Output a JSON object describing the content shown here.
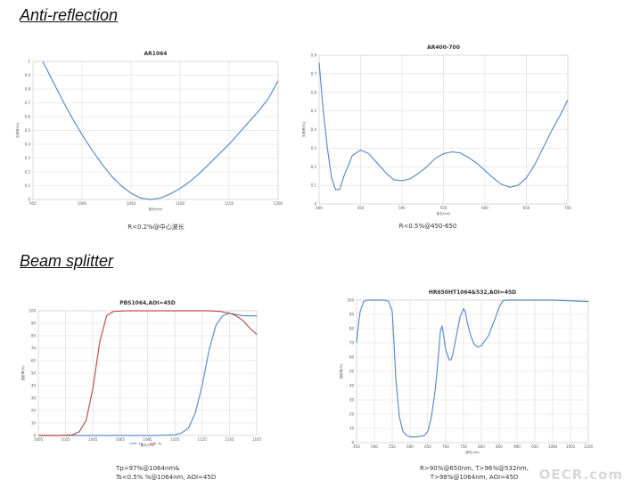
{
  "sections": {
    "anti_reflection": "Anti-reflection",
    "beam_splitter": "Beam splitter"
  },
  "captions": {
    "ar1064": "R<0.2%@中心波长",
    "ar400": "R<0.5%@450-650",
    "pbs_line1": "Tp>97%@1064nm&",
    "pbs_line2": "Ts<0.5% %@1064nm, AOI=45D",
    "hr_line1": "R>90%@650nm, T>96%@532nm,",
    "hr_line2": "T>98%@1064nm, AOI=45D"
  },
  "watermark": "OECR.com",
  "colors": {
    "blue": "#5b8fc9",
    "red": "#c0504d",
    "grid": "#d9d9d9"
  },
  "chart_data": [
    {
      "type": "line",
      "title": "AR1064",
      "xlabel": "波长(nm)",
      "ylabel": "反射率(%)",
      "xlim": [
        950,
        1200
      ],
      "ylim": [
        0,
        1
      ],
      "xticks": [
        "950",
        "1000",
        "1050",
        "1100",
        "1150",
        "1200"
      ],
      "yticks": [
        "0",
        "0.1",
        "0.2",
        "0.3",
        "0.4",
        "0.5",
        "0.6",
        "0.7",
        "0.8",
        "0.9",
        "1"
      ],
      "series": [
        {
          "color": "#5b8fc9",
          "x": [
            960,
            970,
            980,
            990,
            1000,
            1010,
            1020,
            1030,
            1040,
            1050,
            1060,
            1070,
            1080,
            1090,
            1100,
            1110,
            1120,
            1130,
            1140,
            1150,
            1160,
            1170,
            1180,
            1190,
            1200
          ],
          "y": [
            1.0,
            0.86,
            0.72,
            0.59,
            0.47,
            0.36,
            0.26,
            0.17,
            0.1,
            0.045,
            0.01,
            0.0,
            0.01,
            0.04,
            0.08,
            0.13,
            0.19,
            0.26,
            0.33,
            0.4,
            0.48,
            0.56,
            0.64,
            0.73,
            0.86
          ]
        }
      ]
    },
    {
      "type": "line",
      "title": "AR400-700",
      "xlabel": "波长(nm)",
      "ylabel": "反射率(%)",
      "xlim": [
        400,
        700
      ],
      "ylim": [
        0,
        0.8
      ],
      "xticks": [
        "400",
        "450",
        "500",
        "550",
        "600",
        "650",
        "700"
      ],
      "yticks": [
        "0",
        "0.1",
        "0.2",
        "0.3",
        "0.4",
        "0.5",
        "0.6",
        "0.7",
        "0.8"
      ],
      "series": [
        {
          "color": "#5b8fc9",
          "x": [
            400,
            405,
            410,
            415,
            420,
            425,
            430,
            440,
            450,
            460,
            470,
            480,
            490,
            500,
            510,
            520,
            530,
            540,
            550,
            560,
            570,
            580,
            590,
            600,
            610,
            620,
            630,
            640,
            650,
            660,
            670,
            680,
            690,
            700
          ],
          "y": [
            0.76,
            0.5,
            0.3,
            0.14,
            0.075,
            0.08,
            0.15,
            0.26,
            0.29,
            0.27,
            0.22,
            0.17,
            0.13,
            0.125,
            0.135,
            0.165,
            0.2,
            0.245,
            0.27,
            0.28,
            0.275,
            0.25,
            0.22,
            0.18,
            0.14,
            0.105,
            0.09,
            0.1,
            0.14,
            0.21,
            0.3,
            0.39,
            0.47,
            0.56
          ]
        }
      ]
    },
    {
      "type": "line",
      "title": "PBS1064,AOI=45D",
      "xlabel": "波长(nm)",
      "ylabel": "透射率(%)",
      "xlim": [
        1005,
        1165
      ],
      "ylim": [
        0,
        100
      ],
      "xticks": [
        "1005",
        "1025",
        "1045",
        "1065",
        "1085",
        "1105",
        "1125",
        "1145",
        "1165"
      ],
      "yticks": [
        "0",
        "10",
        "20",
        "30",
        "40",
        "50",
        "60",
        "70",
        "80",
        "90",
        "100"
      ],
      "legend": [
        {
          "name": "Tp",
          "color": "#5b8fc9"
        },
        {
          "name": "Ts",
          "color": "#c0504d"
        }
      ],
      "series": [
        {
          "name": "Tp",
          "color": "#5b8fc9",
          "x": [
            1005,
            1070,
            1090,
            1105,
            1110,
            1115,
            1120,
            1125,
            1130,
            1135,
            1140,
            1145,
            1150,
            1155,
            1165
          ],
          "y": [
            0,
            0,
            0,
            0.5,
            2,
            6,
            18,
            40,
            68,
            88,
            96,
            98,
            97,
            96,
            96
          ]
        },
        {
          "name": "Ts",
          "color": "#c0504d",
          "x": [
            1005,
            1020,
            1030,
            1035,
            1040,
            1045,
            1050,
            1055,
            1060,
            1070,
            1100,
            1130,
            1138,
            1145,
            1150,
            1155,
            1160,
            1165
          ],
          "y": [
            0,
            0,
            0.5,
            3,
            12,
            38,
            75,
            96,
            99.5,
            100,
            100,
            100,
            99.5,
            98,
            96,
            92,
            86,
            81
          ]
        }
      ]
    },
    {
      "type": "line",
      "title": "HR650HT1064&532,AOI=45D",
      "xlabel": "波长(nm)",
      "ylabel": "透射率(%)",
      "xlim": [
        450,
        1100
      ],
      "ylim": [
        0,
        100
      ],
      "xticks": [
        "450",
        "500",
        "550",
        "600",
        "650",
        "700",
        "750",
        "800",
        "850",
        "900",
        "950",
        "1000",
        "1050",
        "1100"
      ],
      "yticks": [
        "0",
        "10",
        "20",
        "30",
        "40",
        "50",
        "60",
        "70",
        "80",
        "90",
        "100"
      ],
      "series": [
        {
          "color": "#5b8fc9",
          "x": [
            450,
            455,
            460,
            470,
            480,
            500,
            530,
            540,
            550,
            555,
            560,
            570,
            580,
            590,
            600,
            620,
            640,
            650,
            660,
            670,
            675,
            680,
            685,
            690,
            700,
            710,
            715,
            720,
            730,
            740,
            750,
            755,
            760,
            770,
            780,
            790,
            800,
            820,
            840,
            850,
            860,
            870,
            880,
            900,
            950,
            1000,
            1050,
            1100
          ],
          "y": [
            70,
            82,
            92,
            99,
            100,
            100,
            100,
            99,
            92,
            70,
            45,
            18,
            8,
            5,
            4,
            4,
            5,
            8,
            18,
            36,
            48,
            62,
            78,
            82,
            65,
            58,
            58,
            62,
            75,
            88,
            94,
            92,
            85,
            75,
            69,
            67,
            68,
            75,
            88,
            95,
            99.5,
            100,
            100,
            100,
            100,
            100,
            99.5,
            99
          ]
        }
      ]
    }
  ]
}
